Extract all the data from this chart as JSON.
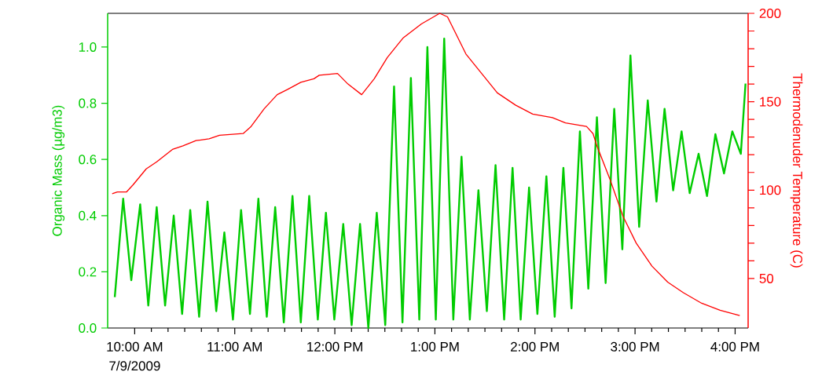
{
  "chart_data": {
    "type": "line",
    "ylabel": "Organic Mass (µg/m3)",
    "y2label": "Thermodenuder Temperature (C)",
    "annotations": [
      "7/9/2009"
    ],
    "xlim": [
      9.73,
      16.13
    ],
    "xticks": [
      {
        "value": 10,
        "label": "10:00 AM"
      },
      {
        "value": 11,
        "label": "11:00 AM"
      },
      {
        "value": 12,
        "label": "12:00 PM"
      },
      {
        "value": 13,
        "label": "1:00 PM"
      },
      {
        "value": 14,
        "label": "2:00 PM"
      },
      {
        "value": 15,
        "label": "3:00 PM"
      },
      {
        "value": 16,
        "label": "4:00 PM"
      }
    ],
    "ylim": [
      0,
      1.12
    ],
    "yticks": [
      {
        "value": 0,
        "label": "0.0"
      },
      0.2,
      0.4,
      0.6,
      0.8,
      {
        "value": 1,
        "label": "1.0"
      }
    ],
    "y2lim": [
      22,
      200
    ],
    "y2ticks": [
      50,
      100,
      150,
      200
    ],
    "series": [
      {
        "color": "#00cc00",
        "x": [
          9.801,
          9.885,
          9.966,
          10.055,
          10.136,
          10.22,
          10.304,
          10.39,
          10.474,
          10.555,
          10.644,
          10.728,
          10.815,
          10.896,
          10.982,
          11.063,
          11.152,
          11.236,
          11.32,
          11.404,
          11.49,
          11.577,
          11.66,
          11.744,
          11.83,
          11.911,
          11.995,
          12.084,
          12.168,
          12.252,
          12.335,
          12.419,
          12.504,
          12.592,
          12.676,
          12.76,
          12.844,
          12.925,
          13.009,
          13.093,
          13.184,
          13.266,
          13.349,
          13.435,
          13.519,
          13.606,
          13.692,
          13.776,
          13.857,
          13.941,
          14.024,
          14.114,
          14.197,
          14.284,
          14.365,
          14.449,
          14.533,
          14.619,
          14.706,
          14.792,
          14.873,
          14.954,
          15.041,
          15.127,
          15.214,
          15.295,
          15.381,
          15.465,
          15.546,
          15.635,
          15.719,
          15.803,
          15.889,
          15.972,
          16.057,
          16.104
        ],
        "values": [
          0.11,
          0.46,
          0.17,
          0.44,
          0.08,
          0.43,
          0.08,
          0.4,
          0.05,
          0.42,
          0.04,
          0.45,
          0.06,
          0.34,
          0.03,
          0.42,
          0.05,
          0.46,
          0.04,
          0.43,
          0.02,
          0.47,
          0.02,
          0.47,
          0.03,
          0.41,
          0.03,
          0.37,
          0.01,
          0.37,
          0.0,
          0.41,
          0.01,
          0.86,
          0.02,
          0.89,
          0.03,
          1.0,
          0.03,
          1.03,
          0.03,
          0.61,
          0.03,
          0.49,
          0.06,
          0.58,
          0.03,
          0.57,
          0.03,
          0.5,
          0.05,
          0.54,
          0.04,
          0.57,
          0.07,
          0.7,
          0.14,
          0.75,
          0.16,
          0.78,
          0.28,
          0.97,
          0.36,
          0.81,
          0.45,
          0.78,
          0.49,
          0.7,
          0.48,
          0.62,
          0.47,
          0.69,
          0.55,
          0.7,
          0.62,
          0.87
        ]
      },
      {
        "color": "#ff0000",
        "axis": "y2",
        "x": [
          9.775,
          9.827,
          9.919,
          9.984,
          10.115,
          10.22,
          10.377,
          10.482,
          10.613,
          10.744,
          10.848,
          11.084,
          11.163,
          11.294,
          11.424,
          11.529,
          11.66,
          11.791,
          11.844,
          12.027,
          12.131,
          12.268,
          12.394,
          12.524,
          12.681,
          12.865,
          13.048,
          13.126,
          13.205,
          13.31,
          13.467,
          13.624,
          13.808,
          13.977,
          14.174,
          14.305,
          14.515,
          14.58,
          14.619,
          14.75,
          14.881,
          15.012,
          15.169,
          15.326,
          15.483,
          15.666,
          15.85,
          16.046
        ],
        "values": [
          98,
          99,
          99,
          103,
          112,
          116,
          123,
          125,
          128,
          129,
          131,
          132,
          136,
          146,
          154,
          157,
          161,
          163,
          165,
          166,
          160,
          154,
          163,
          175,
          186,
          194,
          200,
          198,
          189,
          177,
          166,
          155,
          148,
          143,
          141,
          138,
          136,
          132,
          125,
          106,
          85,
          70,
          57,
          48,
          42,
          36,
          32,
          29
        ]
      }
    ]
  }
}
